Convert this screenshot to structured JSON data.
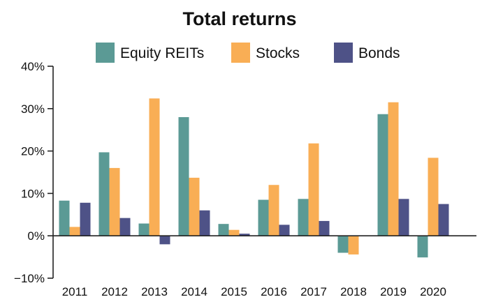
{
  "chart_data": {
    "type": "bar",
    "title": "Total returns",
    "xlabel": "",
    "ylabel": "",
    "categories": [
      "2011",
      "2012",
      "2013",
      "2014",
      "2015",
      "2016",
      "2017",
      "2018",
      "2019",
      "2020"
    ],
    "series": [
      {
        "name": "Equity REITs",
        "color": "#5b9a95",
        "values": [
          8.3,
          19.7,
          2.9,
          28.0,
          2.8,
          8.5,
          8.7,
          -4.0,
          28.7,
          -5.1
        ]
      },
      {
        "name": "Stocks",
        "color": "#f9ae55",
        "values": [
          2.1,
          16.0,
          32.4,
          13.7,
          1.4,
          12.0,
          21.8,
          -4.4,
          31.5,
          18.4
        ]
      },
      {
        "name": "Bonds",
        "color": "#4e5287",
        "values": [
          7.8,
          4.2,
          -2.0,
          6.0,
          0.5,
          2.6,
          3.5,
          0.1,
          8.7,
          7.5
        ]
      }
    ],
    "ylim": [
      -10,
      40
    ],
    "yticks": [
      -10,
      0,
      10,
      20,
      30,
      40
    ],
    "ytick_labels": [
      "−10%",
      "0%",
      "10%",
      "20%",
      "30%",
      "40%"
    ],
    "grid": false,
    "legend_position": "top"
  }
}
